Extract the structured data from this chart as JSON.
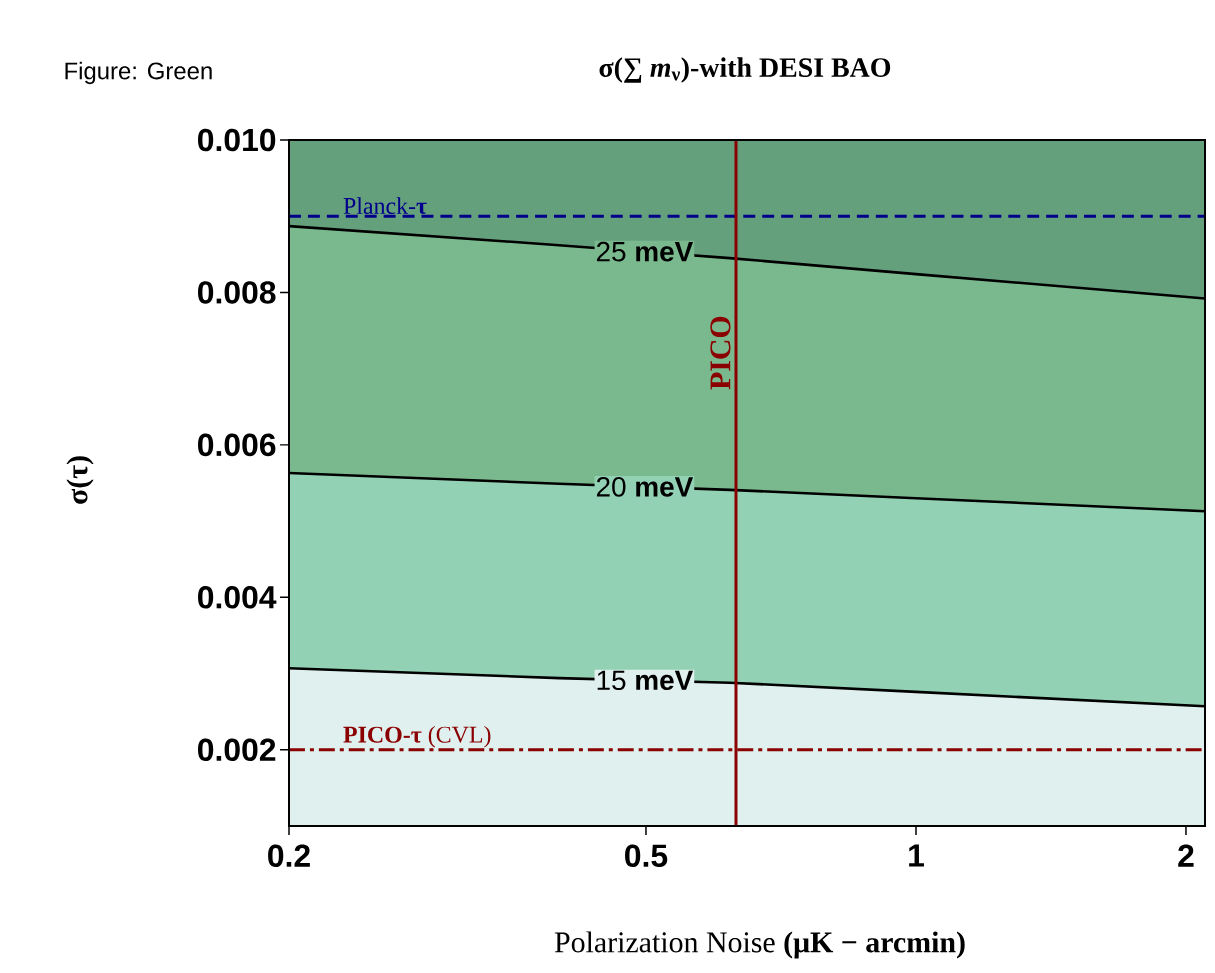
{
  "chart_data": {
    "type": "area",
    "title": "σ(∑ *m*$_{ν}$)-with DESI BAO",
    "xlabel": "Polarization Noise **(μK − arcmin)**",
    "ylabel": "σ(τ)",
    "annotations": [
      "Figure: Green"
    ],
    "log": "x",
    "x": [
      0.2,
      0.4,
      0.62,
      1,
      2.1
    ],
    "xlim": [
      0.2,
      2.1
    ],
    "ylim": [
      0.001,
      0.01
    ],
    "xticks": [
      0.2,
      0.5,
      1,
      2
    ],
    "yticks": [
      0.002,
      0.004,
      0.006,
      0.008,
      {
        "value": 0.01,
        "label": "0.010"
      }
    ],
    "series": [
      {
        "name": "25 **meV**",
        "color": "#7ab98e",
        "values": [
          0.00887,
          0.00862,
          0.00845,
          0.00824,
          0.00792
        ]
      },
      {
        "name": "20 **meV**",
        "color": "#93d1b4",
        "values": [
          0.00563,
          0.00549,
          0.00541,
          0.0053,
          0.00513
        ]
      },
      {
        "name": "15 **meV**",
        "color": "#dff0ee",
        "values": [
          0.00307,
          0.00294,
          0.00288,
          0.00276,
          0.00257
        ]
      }
    ],
    "bands": [
      {
        "axis": "y",
        "from": 0.001,
        "to": 0.01,
        "color": "#65a07d"
      }
    ],
    "ref_lines": [
      {
        "axis": "y",
        "value": 0.009,
        "label": "Planck-**τ**",
        "color": "#00008b",
        "line_style": "dashed"
      },
      {
        "axis": "x",
        "value": 0.63,
        "label": "PICO",
        "color": "#8b0000",
        "line_style": "solid"
      },
      {
        "axis": "y",
        "value": 0.002,
        "label": "**PICO-τ** (CVL)",
        "color": "#8b0000",
        "line_style": "dashdot"
      }
    ],
    "grid": false
  }
}
